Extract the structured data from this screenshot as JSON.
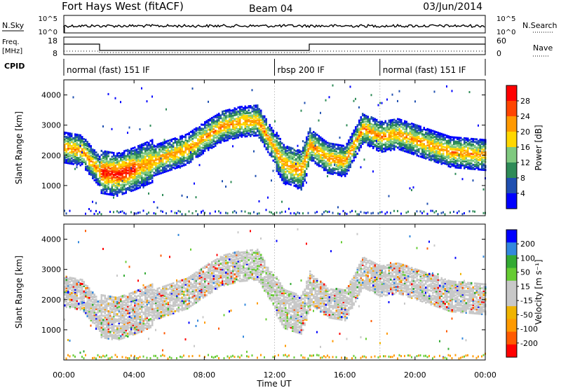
{
  "header": {
    "radar": "Fort Hays West (fitACF)",
    "beam": "Beam 04",
    "date": "03/Jun/2014"
  },
  "nsky_panel": {
    "left_label": "N.Sky",
    "right_label": "N.Search",
    "left_ticks": [
      "10^5",
      "10^0"
    ],
    "right_ticks": [
      "10^5",
      "10^0"
    ]
  },
  "freq_panel": {
    "left_label_1": "Freq.",
    "left_label_2": "[MHz]",
    "right_label": "Nave",
    "left_ticks": [
      "18",
      "8"
    ],
    "right_ticks": [
      "60",
      "0"
    ],
    "cpid_label": "CPID"
  },
  "cpid_segments": [
    {
      "label": "normal (fast) 151 IF",
      "start": 0.0
    },
    {
      "label": "rbsp 200 IF",
      "start": 12.0
    },
    {
      "label": "normal (fast) 151 IF",
      "start": 18.0
    }
  ],
  "x_axis": {
    "label": "Time UT",
    "ticks": [
      "00:00",
      "04:00",
      "08:00",
      "12:00",
      "16:00",
      "20:00",
      "00:00"
    ],
    "range_hours": [
      0,
      24
    ]
  },
  "colors": {
    "power_scale": [
      "#0000ff",
      "#1f4fb0",
      "#2e8b57",
      "#7fc97f",
      "#ffd700",
      "#ff9900",
      "#ff4500",
      "#ff0000"
    ],
    "velocity_scale": [
      "#ff0000",
      "#ff5a00",
      "#ff9a00",
      "#f0b400",
      "#c8c8c8",
      "#c8c8c8",
      "#66cc33",
      "#33aa33",
      "#3388dd",
      "#0000ff"
    ]
  },
  "chart_data": [
    {
      "type": "heatmap",
      "name": "power",
      "ylabel": "Slant Range [km]",
      "yticks": [
        1000,
        2000,
        3000,
        4000
      ],
      "ylim": [
        0,
        4500
      ],
      "xlim": [
        0,
        24
      ],
      "colorbar": {
        "label": "Power [dB]",
        "ticks": [
          "28",
          "24",
          "20",
          "16",
          "12",
          "8",
          "4"
        ]
      },
      "main_band_km": [
        [
          0.0,
          2250
        ],
        [
          1.0,
          2150
        ],
        [
          2.0,
          1450
        ],
        [
          3.0,
          1350
        ],
        [
          4.0,
          1550
        ],
        [
          5.0,
          1800
        ],
        [
          6.0,
          2000
        ],
        [
          7.0,
          2200
        ],
        [
          8.0,
          2600
        ],
        [
          9.0,
          2950
        ],
        [
          10.0,
          3100
        ],
        [
          11.0,
          3150
        ],
        [
          12.0,
          2200
        ],
        [
          12.5,
          1700
        ],
        [
          13.5,
          1500
        ],
        [
          14.0,
          2350
        ],
        [
          15.0,
          1900
        ],
        [
          16.0,
          1800
        ],
        [
          17.0,
          2900
        ],
        [
          18.0,
          2600
        ],
        [
          19.0,
          2700
        ],
        [
          20.0,
          2500
        ],
        [
          22.0,
          2100
        ],
        [
          24.0,
          2000
        ]
      ]
    },
    {
      "type": "heatmap",
      "name": "velocity",
      "ylabel": "Slant Range [km]",
      "yticks": [
        1000,
        2000,
        3000,
        4000
      ],
      "ylim": [
        0,
        4500
      ],
      "xlim": [
        0,
        24
      ],
      "colorbar": {
        "label": "Velocity [m s⁻¹]",
        "ticks": [
          "200",
          "100",
          "50",
          "15",
          "-15",
          "-50",
          "-100",
          "-200"
        ]
      }
    }
  ]
}
